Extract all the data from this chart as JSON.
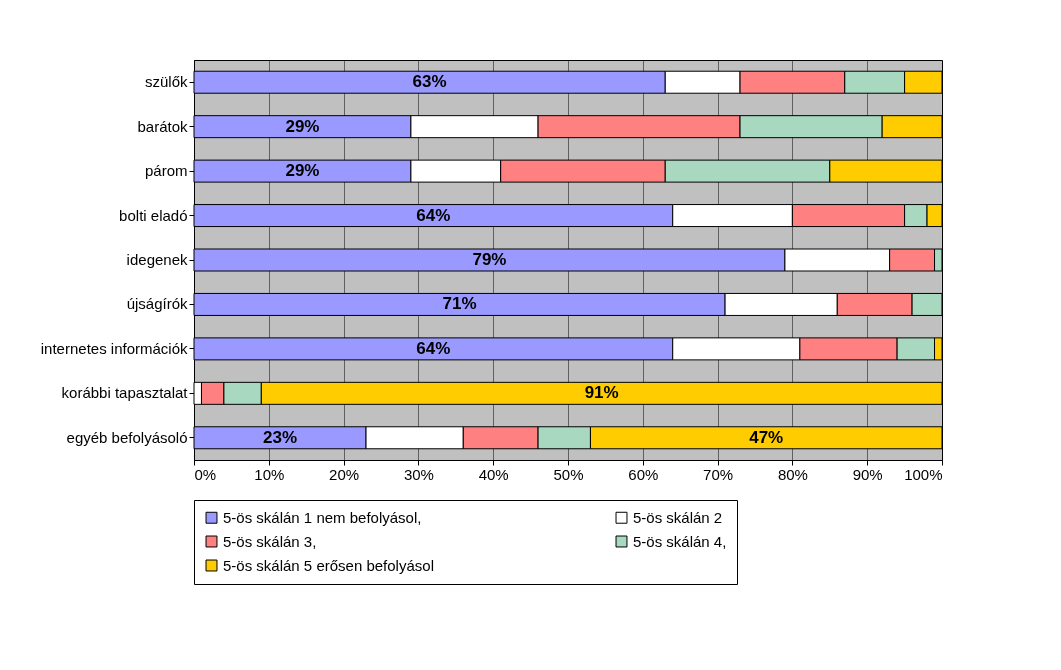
{
  "chart_data": {
    "type": "bar",
    "orientation": "horizontal",
    "stacked": true,
    "categories": [
      "szülők",
      "barátok",
      "párom",
      "bolti eladó",
      "idegenek",
      "újságírók",
      "internetes információk",
      "korábbi tapasztalat",
      "egyéb befolyásoló"
    ],
    "series": [
      {
        "name": "5-ös skálán 1 nem befolyásol,",
        "color": "#9999ff",
        "values": [
          63,
          29,
          29,
          64,
          79,
          71,
          64,
          null,
          23
        ],
        "value_labels": [
          "63%",
          "29%",
          "29%",
          "64%",
          "79%",
          "71%",
          "64%",
          null,
          "23%"
        ]
      },
      {
        "name": "5-ös skálán 2",
        "color": "#ffffff",
        "values": [
          10,
          17,
          12,
          16,
          14,
          15,
          17,
          1,
          13
        ]
      },
      {
        "name": "5-ös skálán 3,",
        "color": "#ff8080",
        "values": [
          14,
          27,
          22,
          15,
          6,
          10,
          13,
          3,
          10
        ]
      },
      {
        "name": "5-ös skálán 4,",
        "color": "#a8d8c0",
        "values": [
          8,
          19,
          22,
          3,
          1,
          4,
          5,
          5,
          7
        ]
      },
      {
        "name": "5-ös skálán 5 erősen befolyásol",
        "color": "#ffcc00",
        "values": [
          5,
          8,
          15,
          2,
          null,
          null,
          1,
          91,
          47
        ],
        "value_labels": [
          null,
          null,
          null,
          null,
          null,
          null,
          null,
          "91%",
          "47%"
        ]
      }
    ],
    "xlim": [
      0,
      100
    ],
    "xticks": [
      {
        "value": 0,
        "label": "0%"
      },
      {
        "value": 10,
        "label": "10%"
      },
      {
        "value": 20,
        "label": "20%"
      },
      {
        "value": 30,
        "label": "30%"
      },
      {
        "value": 40,
        "label": "40%"
      },
      {
        "value": 50,
        "label": "50%"
      },
      {
        "value": 60,
        "label": "60%"
      },
      {
        "value": 70,
        "label": "70%"
      },
      {
        "value": 80,
        "label": "80%"
      },
      {
        "value": 90,
        "label": "90%"
      },
      {
        "value": 100,
        "label": "100%"
      }
    ],
    "grid": "x",
    "legend": "bottom"
  }
}
